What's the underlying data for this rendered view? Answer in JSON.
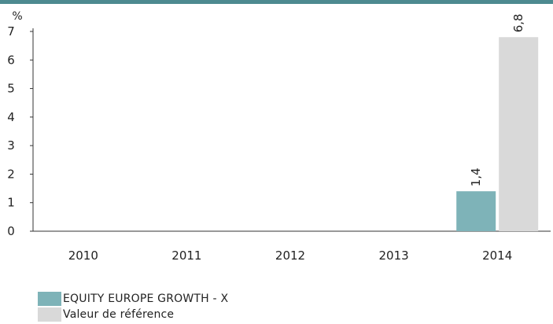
{
  "chart_data": {
    "type": "bar",
    "categories": [
      "2010",
      "2011",
      "2012",
      "2013",
      "2014"
    ],
    "series": [
      {
        "name": "EQUITY EUROPE GROWTH - X",
        "values": [
          null,
          null,
          null,
          null,
          1.4
        ],
        "labels": [
          null,
          null,
          null,
          null,
          "1,4"
        ],
        "color": "#7eb3b8"
      },
      {
        "name": "Valeur de référence",
        "values": [
          null,
          null,
          null,
          null,
          6.8
        ],
        "labels": [
          null,
          null,
          null,
          null,
          "6,8"
        ],
        "color": "#d9d9d9"
      }
    ],
    "ylabel": "%",
    "ylim": [
      0,
      7
    ],
    "yticks": [
      "0",
      "1",
      "2",
      "3",
      "4",
      "5",
      "6",
      "7"
    ],
    "grid": false,
    "legend_position": "bottom-left"
  },
  "colors": {
    "top_bar": "#4d8a90",
    "axis": "#333333"
  }
}
